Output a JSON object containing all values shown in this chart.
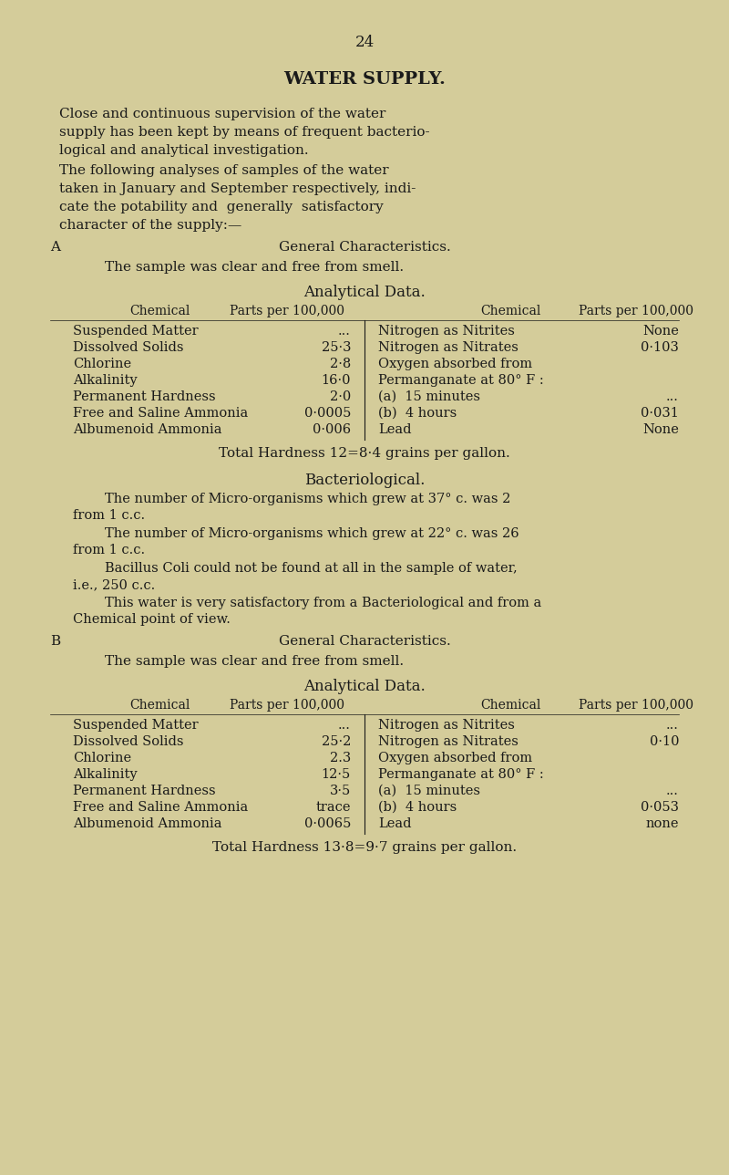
{
  "bg_color": "#d4cc9a",
  "text_color": "#1a1a1a",
  "page_number": "24",
  "title": "WATER SUPPLY.",
  "section_a_label": "A",
  "section_a_heading": "General Characteristics.",
  "section_a_general": "The sample was clear and free from smell.",
  "analytical_data_heading": "Analytical Data.",
  "col_header_left1": "Chemical",
  "col_header_left2": "Parts per 100,000",
  "col_header_right1": "Chemical",
  "col_header_right2": "Parts per 100,000",
  "section_a_left_rows": [
    [
      "Suspended Matter",
      "..."
    ],
    [
      "Dissolved Solids",
      "25·3"
    ],
    [
      "Chlorine",
      "2·8"
    ],
    [
      "Alkalinity",
      "16·0"
    ],
    [
      "Permanent Hardness",
      "2·0"
    ],
    [
      "Free and Saline Ammonia",
      "0·0005"
    ],
    [
      "Albumenoid Ammonia",
      "0·006"
    ]
  ],
  "section_a_right_rows": [
    [
      "Nitrogen as Nitrites",
      "None"
    ],
    [
      "Nitrogen as Nitrates",
      "0·103"
    ],
    [
      "Oxygen absorbed from",
      ""
    ],
    [
      "Permanganate at 80° F :",
      ""
    ],
    [
      "(a)  15 minutes",
      "..."
    ],
    [
      "(b)  4 hours",
      "0·031"
    ],
    [
      "Lead",
      "None"
    ]
  ],
  "section_a_total_hardness": "Total Hardness 12=8·4 grains per gallon.",
  "bacteriological_heading": "Bacteriological.",
  "section_b_label": "B",
  "section_b_heading": "General Characteristics.",
  "section_b_general": "The sample was clear and free from smell.",
  "section_b_left_rows": [
    [
      "Suspended Matter",
      "..."
    ],
    [
      "Dissolved Solids",
      "25·2"
    ],
    [
      "Chlorine",
      "2.3"
    ],
    [
      "Alkalinity",
      "12·5"
    ],
    [
      "Permanent Hardness",
      "3·5"
    ],
    [
      "Free and Saline Ammonia",
      "trace"
    ],
    [
      "Albumenoid Ammonia",
      "0·0065"
    ]
  ],
  "section_b_right_rows": [
    [
      "Nitrogen as Nitrites",
      "..."
    ],
    [
      "Nitrogen as Nitrates",
      "0·10"
    ],
    [
      "Oxygen absorbed from",
      ""
    ],
    [
      "Permanganate at 80° F :",
      ""
    ],
    [
      "(a)  15 minutes",
      "..."
    ],
    [
      "(b)  4 hours",
      "0·053"
    ],
    [
      "Lead",
      "none"
    ]
  ],
  "section_b_total_hardness": "Total Hardness 13·8=9·7 grains per gallon."
}
